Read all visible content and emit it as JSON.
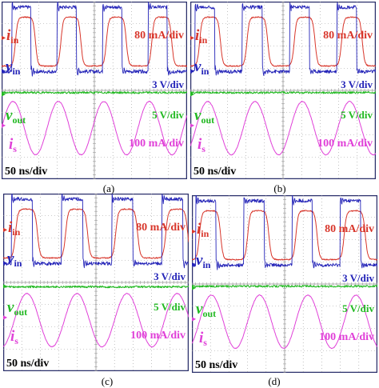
{
  "colors": {
    "i_in": "#d8362b",
    "v_in": "#2424b8",
    "v_out": "#22b922",
    "i_s": "#e040d8",
    "grid": "#9a9a9a",
    "frame": "#2a2f6a"
  },
  "panels": [
    {
      "id": "a",
      "caption": "(a)",
      "labels": {
        "i_in_sym": "i",
        "i_in_sub": "in",
        "v_in_sym": "v",
        "v_in_sub": "in",
        "v_out_sym": "v",
        "v_out_sub": "out",
        "i_s_sym": "i",
        "i_s_sub": "s"
      },
      "scales": {
        "i_in": "80 mA/div",
        "v_in": "3 V/div",
        "v_out": "5 V/div",
        "i_s": "100 mA/div",
        "time": "50 ns/div"
      }
    },
    {
      "id": "b",
      "caption": "(b)",
      "labels": {
        "i_in_sym": "i",
        "i_in_sub": "in",
        "v_in_sym": "v",
        "v_in_sub": "in",
        "v_out_sym": "v",
        "v_out_sub": "out",
        "i_s_sym": "i",
        "i_s_sub": "s"
      },
      "scales": {
        "i_in": "80 mA/div",
        "v_in": "3 V/div",
        "v_out": "5 V/div",
        "i_s": "100 mA/div",
        "time": "50 ns/div"
      }
    },
    {
      "id": "c",
      "caption": "(c)",
      "labels": {
        "i_in_sym": "i",
        "i_in_sub": "in",
        "v_in_sym": "v",
        "v_in_sub": "in",
        "v_out_sym": "v",
        "v_out_sub": "out",
        "i_s_sym": "i",
        "i_s_sub": "s"
      },
      "scales": {
        "i_in": "80 mA/div",
        "v_in": "3 V/div",
        "v_out": "5 V/div",
        "i_s": "100 mA/div",
        "time": "50 ns/div"
      }
    },
    {
      "id": "d",
      "caption": "(d)",
      "labels": {
        "i_in_sym": "i",
        "i_in_sub": "in",
        "v_in_sym": "v",
        "v_in_sub": "in",
        "v_out_sym": "v",
        "v_out_sub": "out",
        "i_s_sym": "i",
        "i_s_sub": "s"
      },
      "scales": {
        "i_in": "80 mA/div",
        "v_in": "3 V/div",
        "v_out": "5 V/div",
        "i_s": "100 mA/div",
        "time": "50 ns/div"
      }
    }
  ],
  "chart_data": [
    {
      "type": "line",
      "panel": "(a)",
      "x_divisions": 10,
      "y_divisions": 8,
      "time_per_div": "50 ns/div",
      "grid": true,
      "series": [
        {
          "name": "i_in",
          "scale": "80 mA/div",
          "shape": "trapezoid",
          "period_div": 2.45,
          "phase_div": 0.6,
          "amplitude_div": 1.1,
          "offset_div": 2.2
        },
        {
          "name": "v_in",
          "scale": "3 V/div",
          "shape": "square",
          "period_div": 2.45,
          "phase_div": 0.55,
          "amplitude_div": 1.45,
          "offset_div": 2.3
        },
        {
          "name": "v_out",
          "scale": "5 V/div",
          "shape": "dc",
          "offset_div": -0.1
        },
        {
          "name": "i_s",
          "scale": "100 mA/div",
          "shape": "sine",
          "period_div": 2.45,
          "phase_div": 0.0,
          "amplitude_div": 1.2,
          "offset_div": -1.7
        }
      ]
    },
    {
      "type": "line",
      "panel": "(b)",
      "x_divisions": 10,
      "y_divisions": 8,
      "time_per_div": "50 ns/div",
      "grid": true,
      "series": [
        {
          "name": "i_in",
          "scale": "80 mA/div",
          "shape": "trapezoid",
          "period_div": 2.55,
          "phase_div": 0.35,
          "amplitude_div": 1.1,
          "offset_div": 2.2
        },
        {
          "name": "v_in",
          "scale": "3 V/div",
          "shape": "square",
          "period_div": 2.55,
          "phase_div": 0.25,
          "amplitude_div": 1.45,
          "offset_div": 2.3
        },
        {
          "name": "v_out",
          "scale": "5 V/div",
          "shape": "dc",
          "offset_div": -0.1
        },
        {
          "name": "i_s",
          "scale": "100 mA/div",
          "shape": "sine",
          "period_div": 2.55,
          "phase_div": 0.3,
          "amplitude_div": 1.2,
          "offset_div": -1.7
        }
      ]
    },
    {
      "type": "line",
      "panel": "(c)",
      "x_divisions": 10,
      "y_divisions": 8,
      "time_per_div": "50 ns/div",
      "grid": true,
      "series": [
        {
          "name": "i_in",
          "scale": "80 mA/div",
          "shape": "trapezoid",
          "period_div": 2.7,
          "phase_div": 0.5,
          "amplitude_div": 1.1,
          "offset_div": 2.2
        },
        {
          "name": "v_in",
          "scale": "3 V/div",
          "shape": "square",
          "period_div": 2.7,
          "phase_div": 0.45,
          "amplitude_div": 1.45,
          "offset_div": 2.3
        },
        {
          "name": "v_out",
          "scale": "5 V/div",
          "shape": "dc",
          "offset_div": -0.2
        },
        {
          "name": "i_s",
          "scale": "100 mA/div",
          "shape": "sine",
          "period_div": 2.7,
          "phase_div": 0.6,
          "amplitude_div": 1.2,
          "offset_div": -1.7
        }
      ]
    },
    {
      "type": "line",
      "panel": "(d)",
      "x_divisions": 10,
      "y_divisions": 8,
      "time_per_div": "50 ns/div",
      "grid": true,
      "series": [
        {
          "name": "i_in",
          "scale": "80 mA/div",
          "shape": "trapezoid",
          "period_div": 2.6,
          "phase_div": 0.25,
          "amplitude_div": 1.1,
          "offset_div": 2.2
        },
        {
          "name": "v_in",
          "scale": "3 V/div",
          "shape": "square",
          "period_div": 2.6,
          "phase_div": 0.2,
          "amplitude_div": 1.45,
          "offset_div": 2.3
        },
        {
          "name": "v_out",
          "scale": "5 V/div",
          "shape": "dc",
          "offset_div": -0.1
        },
        {
          "name": "i_s",
          "scale": "100 mA/div",
          "shape": "sine",
          "period_div": 2.6,
          "phase_div": 0.4,
          "amplitude_div": 1.2,
          "offset_div": -1.7
        }
      ]
    }
  ]
}
